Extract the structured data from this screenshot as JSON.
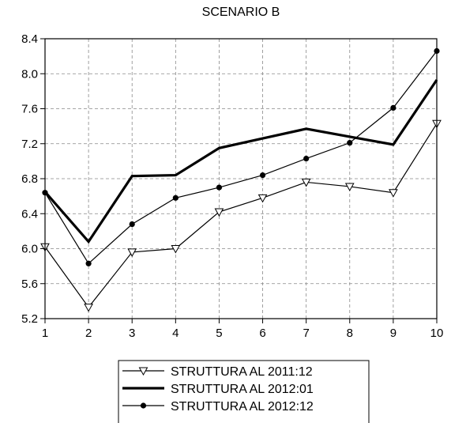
{
  "chart_data": {
    "type": "line",
    "title": "SCENARIO B",
    "x": [
      1,
      2,
      3,
      4,
      5,
      6,
      7,
      8,
      9,
      10
    ],
    "xlim": [
      1,
      10
    ],
    "ylim": [
      5.2,
      8.4
    ],
    "yticks": [
      5.2,
      5.6,
      6.0,
      6.4,
      6.8,
      7.2,
      7.6,
      8.0,
      8.4
    ],
    "ytick_labels": [
      "5.2",
      "5.6",
      "6.0",
      "6.4",
      "6.8",
      "7.2",
      "7.6",
      "8.0",
      "8.4"
    ],
    "xtick_labels": [
      "1",
      "2",
      "3",
      "4",
      "5",
      "6",
      "7",
      "8",
      "9",
      "10"
    ],
    "grid": true,
    "legend_position": "bottom-center",
    "series": [
      {
        "name": "STRUTTURA AL 2011:12",
        "marker": "triangle-down",
        "style": "thin",
        "color": "#000000",
        "values": [
          6.02,
          5.33,
          5.96,
          6.0,
          6.42,
          6.58,
          6.76,
          6.71,
          6.64,
          7.43
        ]
      },
      {
        "name": "STRUTTURA AL 2012:01",
        "marker": "none",
        "style": "thick",
        "color": "#000000",
        "values": [
          6.65,
          6.08,
          6.83,
          6.84,
          7.15,
          7.26,
          7.37,
          7.28,
          7.19,
          7.93
        ]
      },
      {
        "name": "STRUTTURA AL 2012:12",
        "marker": "circle",
        "style": "thin",
        "color": "#000000",
        "values": [
          6.64,
          5.83,
          6.28,
          6.58,
          6.7,
          6.84,
          7.03,
          7.21,
          7.61,
          8.26
        ]
      }
    ]
  }
}
